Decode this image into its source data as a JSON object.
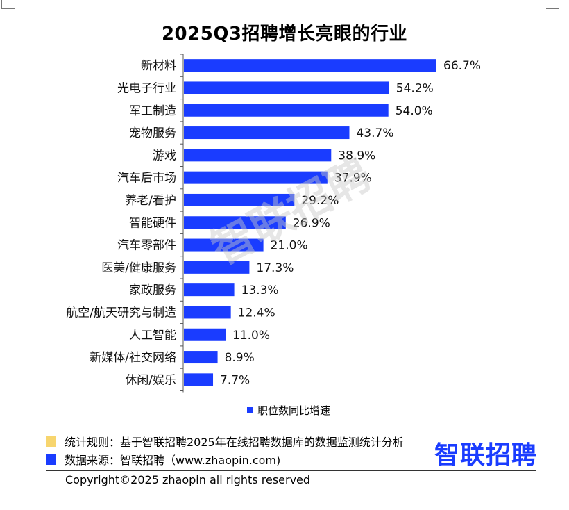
{
  "title": "2025Q3招聘增长亮眼的行业",
  "chart_data": {
    "type": "bar",
    "orientation": "horizontal",
    "categories": [
      "新材料",
      "光电子行业",
      "军工制造",
      "宠物服务",
      "游戏",
      "汽车后市场",
      "养老/看护",
      "智能硬件",
      "汽车零部件",
      "医美/健康服务",
      "家政服务",
      "航空/航天研究与制造",
      "人工智能",
      "新媒体/社交网络",
      "休闲/娱乐"
    ],
    "series": [
      {
        "name": "职位数同比增速",
        "values": [
          66.7,
          54.2,
          54.0,
          43.7,
          38.9,
          37.9,
          29.2,
          26.9,
          21.0,
          17.3,
          13.3,
          12.4,
          11.0,
          8.9,
          7.7
        ],
        "value_labels": [
          "66.7%",
          "54.2%",
          "54.0%",
          "43.7%",
          "38.9%",
          "37.9%",
          "29.2%",
          "26.9%",
          "21.0%",
          "17.3%",
          "13.3%",
          "12.4%",
          "11.0%",
          "8.9%",
          "7.7%"
        ]
      }
    ],
    "xlim": [
      0,
      70
    ],
    "grid": false,
    "legend_position": "bottom",
    "bar_color": "#1a3cff"
  },
  "legend": {
    "label": "职位数同比增速"
  },
  "footer": {
    "rule_text": "统计规则：基于智联招聘2025年在线招聘数据库的数据监测统计分析",
    "source_text": "数据来源：智联招聘（www.zhaopin.com)",
    "rule_color": "#f7d56e",
    "source_color": "#1a3cff"
  },
  "logo": {
    "text": "智联招聘",
    "color": "#1a3cff"
  },
  "watermark": "智联招聘",
  "copyright": "Copyright©2025 zhaopin all rights reserved"
}
